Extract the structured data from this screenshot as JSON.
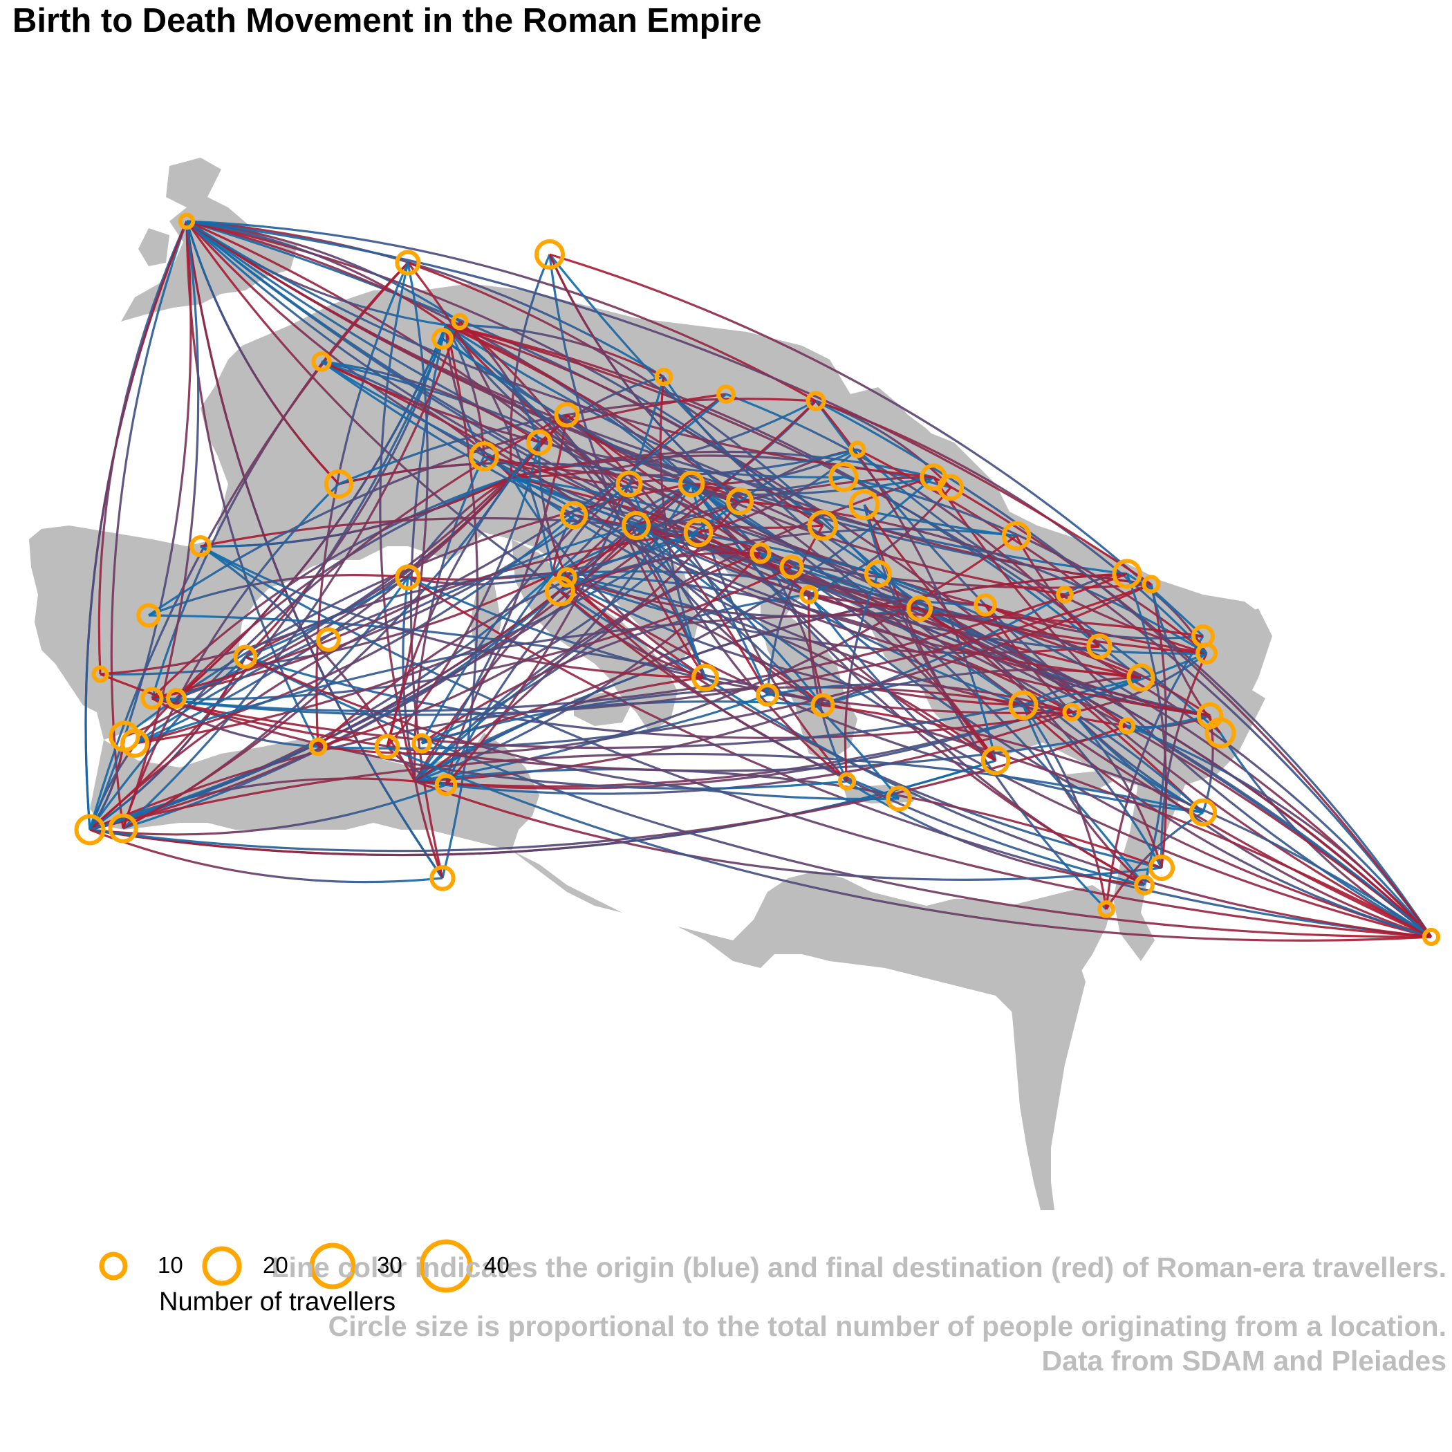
{
  "title": "Birth to Death Movement in the Roman Empire",
  "captions": [
    "Line color indicates the origin (blue) and final destination (red) of Roman-era travellers.",
    "Circle size is proportional to the total number of people originating from a location.",
    "Data from SDAM and Pleiades"
  ],
  "legend": {
    "title": "Number of travellers",
    "items": [
      "10",
      "20",
      "30",
      "40"
    ]
  },
  "colors": {
    "land": "#bdbdbd",
    "origin_line": "#0b6fb0",
    "destination_line": "#b5172c",
    "circle": "#ffa600"
  }
}
